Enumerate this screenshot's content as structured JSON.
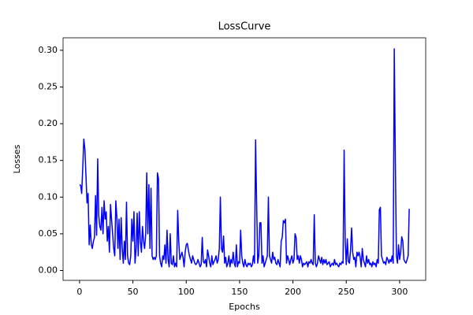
{
  "chart_data": {
    "type": "line",
    "title": "LossCurve",
    "x_label": "Epochs",
    "y_label": "Losses",
    "color": "#0000ff",
    "xlim": [
      -15.45,
      324.45
    ],
    "ylim": [
      -0.0134,
      0.317
    ],
    "xticks": [
      0,
      50,
      100,
      150,
      200,
      250,
      300
    ],
    "yticks": [
      {
        "value": 0,
        "label": "0.00"
      },
      {
        "value": 0.05,
        "label": "0.05"
      },
      {
        "value": 0.1,
        "label": "0.10"
      },
      {
        "value": 0.15,
        "label": "0.15"
      },
      {
        "value": 0.2,
        "label": "0.20"
      },
      {
        "value": 0.25,
        "label": "0.25"
      },
      {
        "value": 0.3,
        "label": "0.30"
      }
    ],
    "x": [
      0,
      1,
      2,
      3,
      4,
      5,
      6,
      7,
      8,
      9,
      10,
      11,
      12,
      13,
      14,
      15,
      16,
      17,
      18,
      19,
      20,
      21,
      22,
      23,
      24,
      25,
      26,
      27,
      28,
      29,
      30,
      31,
      32,
      33,
      34,
      35,
      36,
      37,
      38,
      39,
      40,
      41,
      42,
      43,
      44,
      45,
      46,
      47,
      48,
      49,
      50,
      51,
      52,
      53,
      54,
      55,
      56,
      57,
      58,
      59,
      60,
      61,
      62,
      63,
      64,
      65,
      66,
      67,
      68,
      69,
      70,
      71,
      72,
      73,
      74,
      75,
      76,
      77,
      78,
      79,
      80,
      81,
      82,
      83,
      84,
      85,
      86,
      87,
      88,
      89,
      90,
      91,
      92,
      93,
      94,
      95,
      96,
      97,
      98,
      99,
      100,
      101,
      102,
      103,
      104,
      105,
      106,
      107,
      108,
      109,
      110,
      111,
      112,
      113,
      114,
      115,
      116,
      117,
      118,
      119,
      120,
      121,
      122,
      123,
      124,
      125,
      126,
      127,
      128,
      129,
      130,
      131,
      132,
      133,
      134,
      135,
      136,
      137,
      138,
      139,
      140,
      141,
      142,
      143,
      144,
      145,
      146,
      147,
      148,
      149,
      150,
      151,
      152,
      153,
      154,
      155,
      156,
      157,
      158,
      159,
      160,
      161,
      162,
      163,
      164,
      165,
      166,
      167,
      168,
      169,
      170,
      171,
      172,
      173,
      174,
      175,
      176,
      177,
      178,
      179,
      180,
      181,
      182,
      183,
      184,
      185,
      186,
      187,
      188,
      189,
      190,
      191,
      192,
      193,
      194,
      195,
      196,
      197,
      198,
      199,
      200,
      201,
      202,
      203,
      204,
      205,
      206,
      207,
      208,
      209,
      210,
      211,
      212,
      213,
      214,
      215,
      216,
      217,
      218,
      219,
      220,
      221,
      222,
      223,
      224,
      225,
      226,
      227,
      228,
      229,
      230,
      231,
      232,
      233,
      234,
      235,
      236,
      237,
      238,
      239,
      240,
      241,
      242,
      243,
      244,
      245,
      246,
      247,
      248,
      249,
      250,
      251,
      252,
      253,
      254,
      255,
      256,
      257,
      258,
      259,
      260,
      261,
      262,
      263,
      264,
      265,
      266,
      267,
      268,
      269,
      270,
      271,
      272,
      273,
      274,
      275,
      276,
      277,
      278,
      279,
      280,
      281,
      282,
      283,
      284,
      285,
      286,
      287,
      288,
      289,
      290,
      291,
      292,
      293,
      294,
      295,
      296,
      297,
      298,
      299,
      300,
      301,
      302,
      303,
      304,
      305,
      306,
      307,
      308,
      309
    ],
    "values": [
      0.117,
      0.116,
      0.105,
      0.14,
      0.179,
      0.165,
      0.13,
      0.092,
      0.105,
      0.035,
      0.062,
      0.035,
      0.03,
      0.04,
      0.045,
      0.102,
      0.048,
      0.152,
      0.075,
      0.06,
      0.055,
      0.086,
      0.05,
      0.095,
      0.07,
      0.08,
      0.04,
      0.06,
      0.025,
      0.09,
      0.07,
      0.05,
      0.03,
      0.02,
      0.095,
      0.072,
      0.03,
      0.07,
      0.015,
      0.072,
      0.03,
      0.01,
      0.04,
      0.015,
      0.093,
      0.02,
      0.01,
      0.008,
      0.02,
      0.07,
      0.04,
      0.08,
      0.01,
      0.03,
      0.078,
      0.02,
      0.08,
      0.04,
      0.025,
      0.06,
      0.04,
      0.03,
      0.05,
      0.133,
      0.05,
      0.117,
      0.03,
      0.112,
      0.02,
      0.015,
      0.018,
      0.015,
      0.02,
      0.133,
      0.125,
      0.02,
      0.01,
      0.005,
      0.02,
      0.015,
      0.035,
      0.01,
      0.055,
      0.015,
      0.005,
      0.05,
      0.01,
      0.008,
      0.02,
      0.005,
      0.01,
      0.005,
      0.082,
      0.04,
      0.015,
      0.02,
      0.025,
      0.018,
      0.005,
      0.025,
      0.035,
      0.037,
      0.028,
      0.02,
      0.015,
      0.01,
      0.02,
      0.015,
      0.01,
      0.008,
      0.01,
      0.015,
      0.01,
      0.005,
      0.008,
      0.045,
      0.012,
      0.01,
      0.015,
      0.005,
      0.028,
      0.02,
      0.01,
      0.005,
      0.02,
      0.008,
      0.012,
      0.015,
      0.02,
      0.01,
      0.015,
      0.03,
      0.1,
      0.03,
      0.025,
      0.047,
      0.01,
      0.018,
      0.005,
      0.01,
      0.02,
      0.005,
      0.015,
      0.01,
      0.025,
      0.01,
      0.005,
      0.035,
      0.005,
      0.012,
      0.01,
      0.055,
      0.02,
      0.01,
      0.005,
      0.015,
      0.008,
      0.005,
      0.01,
      0.008,
      0.01,
      0.005,
      0.008,
      0.02,
      0.01,
      0.178,
      0.09,
      0.01,
      0.02,
      0.065,
      0.065,
      0.01,
      0.02,
      0.005,
      0.01,
      0.015,
      0.02,
      0.1,
      0.02,
      0.015,
      0.01,
      0.025,
      0.015,
      0.018,
      0.01,
      0.008,
      0.015,
      0.01,
      0.005,
      0.04,
      0.045,
      0.068,
      0.065,
      0.07,
      0.01,
      0.02,
      0.015,
      0.008,
      0.015,
      0.02,
      0.01,
      0.015,
      0.05,
      0.045,
      0.015,
      0.02,
      0.01,
      0.02,
      0.015,
      0.005,
      0.01,
      0.008,
      0.01,
      0.012,
      0.005,
      0.012,
      0.01,
      0.015,
      0.01,
      0.008,
      0.076,
      0.01,
      0.005,
      0.01,
      0.02,
      0.015,
      0.01,
      0.018,
      0.008,
      0.015,
      0.01,
      0.015,
      0.008,
      0.01,
      0.012,
      0.005,
      0.008,
      0.01,
      0.007,
      0.015,
      0.008,
      0.01,
      0.007,
      0.005,
      0.01,
      0.008,
      0.012,
      0.01,
      0.164,
      0.04,
      0.008,
      0.043,
      0.012,
      0.01,
      0.028,
      0.058,
      0.025,
      0.015,
      0.018,
      0.005,
      0.025,
      0.02,
      0.025,
      0.018,
      0.005,
      0.03,
      0.015,
      0.01,
      0.005,
      0.02,
      0.01,
      0.015,
      0.008,
      0.01,
      0.005,
      0.012,
      0.008,
      0.01,
      0.005,
      0.015,
      0.01,
      0.083,
      0.086,
      0.02,
      0.015,
      0.01,
      0.012,
      0.008,
      0.018,
      0.015,
      0.01,
      0.015,
      0.012,
      0.02,
      0.01,
      0.302,
      0.15,
      0.02,
      0.01,
      0.035,
      0.015,
      0.025,
      0.046,
      0.04,
      0.015,
      0.012,
      0.01,
      0.015,
      0.02,
      0.084
    ]
  }
}
